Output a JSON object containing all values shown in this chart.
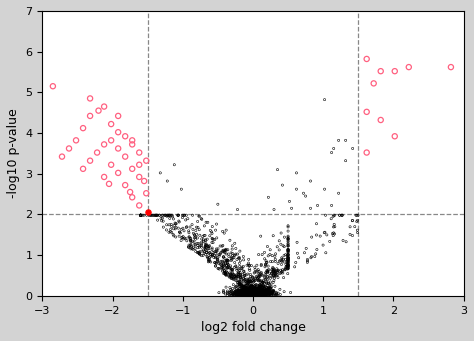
{
  "title": "",
  "xlabel": "log2 fold change",
  "ylabel": "-log10 p-value",
  "xlim": [
    -3,
    3
  ],
  "ylim": [
    0,
    7
  ],
  "xticks": [
    -3,
    -2,
    -1,
    0,
    1,
    2,
    3
  ],
  "yticks": [
    0,
    1,
    2,
    3,
    4,
    5,
    6,
    7
  ],
  "vline1": -1.5,
  "vline2": 1.5,
  "hline": 2.0,
  "line_color": "#888888",
  "line_style": "--",
  "pink_color": "#FF6080",
  "black_color": "#000000",
  "red_color": "#FF0000",
  "pink_points_left": [
    [
      -2.85,
      5.15
    ],
    [
      -2.2,
      4.55
    ],
    [
      -2.12,
      4.65
    ],
    [
      -2.32,
      4.42
    ],
    [
      -2.02,
      4.22
    ],
    [
      -1.92,
      4.02
    ],
    [
      -2.42,
      4.12
    ],
    [
      -1.82,
      3.92
    ],
    [
      -2.52,
      3.82
    ],
    [
      -2.02,
      3.82
    ],
    [
      -1.72,
      3.72
    ],
    [
      -2.12,
      3.72
    ],
    [
      -2.62,
      3.62
    ],
    [
      -1.92,
      3.62
    ],
    [
      -1.62,
      3.52
    ],
    [
      -2.22,
      3.52
    ],
    [
      -2.72,
      3.42
    ],
    [
      -1.82,
      3.42
    ],
    [
      -1.52,
      3.32
    ],
    [
      -2.32,
      3.32
    ],
    [
      -2.02,
      3.22
    ],
    [
      -1.72,
      3.12
    ],
    [
      -2.42,
      3.12
    ],
    [
      -1.92,
      3.02
    ],
    [
      -1.62,
      2.92
    ],
    [
      -2.12,
      2.92
    ],
    [
      -1.82,
      2.72
    ],
    [
      -1.52,
      2.52
    ],
    [
      -1.72,
      2.42
    ],
    [
      -1.62,
      2.22
    ],
    [
      -1.72,
      3.82
    ],
    [
      -1.92,
      4.42
    ],
    [
      -2.32,
      4.85
    ],
    [
      -1.62,
      3.22
    ],
    [
      -2.05,
      2.75
    ],
    [
      -1.55,
      2.82
    ],
    [
      -1.75,
      2.55
    ]
  ],
  "pink_points_right": [
    [
      1.62,
      5.82
    ],
    [
      1.82,
      5.52
    ],
    [
      2.02,
      5.52
    ],
    [
      2.22,
      5.62
    ],
    [
      1.72,
      5.22
    ],
    [
      2.82,
      5.62
    ],
    [
      1.62,
      4.52
    ],
    [
      1.82,
      4.32
    ],
    [
      2.02,
      3.92
    ],
    [
      1.62,
      3.52
    ]
  ],
  "red_point": [
    -1.5,
    2.05
  ],
  "figsize": [
    4.74,
    3.41
  ],
  "dpi": 100,
  "outer_bg": "#d3d3d3",
  "inner_bg": "#ffffff"
}
